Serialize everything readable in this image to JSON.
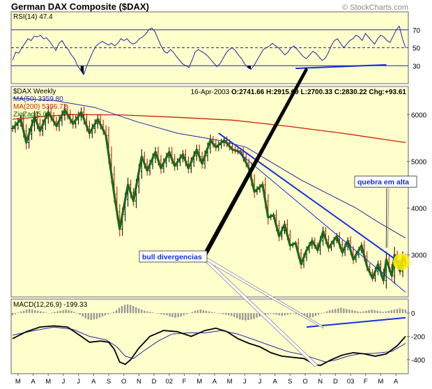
{
  "chart_data": {
    "type": "line",
    "title": "German DAX Composite ($DAX)",
    "watermark": "© StockCharts.com",
    "rsi": {
      "label": "RSI(14)",
      "value": "47.4",
      "levels": [
        70,
        50,
        30
      ],
      "ylim": [
        10,
        90
      ],
      "values": [
        36,
        45,
        44,
        50,
        55,
        60,
        58,
        63,
        62,
        64,
        60,
        61,
        57,
        52,
        47,
        55,
        58,
        52,
        48,
        42,
        38,
        30,
        25,
        20,
        30,
        38,
        46,
        52,
        55,
        57,
        55,
        53,
        55,
        52,
        55,
        60,
        58,
        60,
        56,
        54,
        56,
        60,
        62,
        65,
        70,
        72,
        68,
        60,
        52,
        46,
        44,
        48,
        45,
        40,
        36,
        32,
        30,
        28,
        36,
        45,
        48,
        46,
        44,
        41,
        37,
        33,
        29,
        32,
        38,
        44,
        48,
        50,
        47,
        42,
        38,
        32,
        28,
        26,
        30,
        36,
        42,
        48,
        50,
        52,
        55,
        52,
        50,
        46,
        42,
        45,
        50,
        52,
        48,
        44,
        40,
        38,
        42,
        46,
        44,
        40,
        36,
        38,
        44,
        52,
        58,
        60,
        55,
        50,
        54,
        58,
        60,
        64,
        62,
        58,
        66,
        62,
        58,
        54,
        60,
        64,
        62,
        58,
        56,
        63,
        70,
        74,
        60,
        50
      ]
    },
    "price": {
      "label": "$DAX Weekly",
      "date": "16-Apr-2003",
      "open": "O:2741.66",
      "high": "H:2915.69",
      "low": "L:2700.33",
      "close": "C:2830.22",
      "change": "Chg:+93.61",
      "ma50_label": "MA(50) 3359.80",
      "ma200_label": "MA(200) 5396.72",
      "zigzag_label": "ZigZag(5.0)",
      "y_ticks": [
        6000,
        5000,
        4000,
        3000
      ],
      "ylim": [
        2100,
        6600
      ],
      "zigzag": [
        [
          0,
          5700
        ],
        [
          3,
          5900
        ],
        [
          5,
          5400
        ],
        [
          8,
          5950
        ],
        [
          10,
          5650
        ],
        [
          13,
          6050
        ],
        [
          16,
          5750
        ],
        [
          19,
          6100
        ],
        [
          22,
          5800
        ],
        [
          25,
          6050
        ],
        [
          28,
          5600
        ],
        [
          31,
          5900
        ],
        [
          34,
          5550
        ],
        [
          37,
          4300
        ],
        [
          39,
          3550
        ],
        [
          42,
          4500
        ],
        [
          44,
          4150
        ],
        [
          47,
          5100
        ],
        [
          49,
          4800
        ],
        [
          52,
          5200
        ],
        [
          54,
          4850
        ],
        [
          57,
          5200
        ],
        [
          59,
          4900
        ],
        [
          62,
          5150
        ],
        [
          64,
          4850
        ],
        [
          67,
          5250
        ],
        [
          69,
          4950
        ],
        [
          72,
          5450
        ],
        [
          74,
          5300
        ],
        [
          77,
          5450
        ],
        [
          80,
          5250
        ],
        [
          83,
          5200
        ],
        [
          86,
          4850
        ],
        [
          88,
          4350
        ],
        [
          91,
          4500
        ],
        [
          93,
          3800
        ],
        [
          95,
          3850
        ],
        [
          97,
          3400
        ],
        [
          99,
          3650
        ],
        [
          101,
          3200
        ],
        [
          103,
          3250
        ],
        [
          105,
          2800
        ],
        [
          107,
          3100
        ],
        [
          109,
          3300
        ],
        [
          111,
          3100
        ],
        [
          113,
          3500
        ],
        [
          115,
          3150
        ],
        [
          118,
          3400
        ],
        [
          120,
          3050
        ],
        [
          122,
          3300
        ],
        [
          124,
          2900
        ],
        [
          127,
          3200
        ],
        [
          129,
          2750
        ],
        [
          131,
          2500
        ],
        [
          133,
          2800
        ],
        [
          135,
          2450
        ],
        [
          136,
          2900
        ],
        [
          138,
          2550
        ],
        [
          139,
          3000
        ],
        [
          141,
          2650
        ],
        [
          142,
          2950
        ],
        [
          143,
          2820
        ]
      ],
      "ma50": [
        [
          0,
          6350
        ],
        [
          15,
          6300
        ],
        [
          30,
          6150
        ],
        [
          45,
          5850
        ],
        [
          60,
          5600
        ],
        [
          75,
          5450
        ],
        [
          85,
          5300
        ],
        [
          95,
          4950
        ],
        [
          105,
          4600
        ],
        [
          115,
          4300
        ],
        [
          125,
          4000
        ],
        [
          133,
          3700
        ],
        [
          143,
          3360
        ]
      ],
      "ma200": [
        [
          0,
          5900
        ],
        [
          20,
          6000
        ],
        [
          40,
          5990
        ],
        [
          60,
          5940
        ],
        [
          80,
          5880
        ],
        [
          100,
          5750
        ],
        [
          120,
          5600
        ],
        [
          143,
          5400
        ]
      ],
      "resistance_line": [
        [
          75,
          5600
        ],
        [
          143,
          2750
        ]
      ],
      "channel_line": [
        [
          82,
          5200
        ],
        [
          143,
          2200
        ]
      ],
      "highlight_circle": [
        142,
        2850
      ],
      "annotations": [
        {
          "text": "bull divergencias",
          "x": 69,
          "y": 2950
        },
        {
          "text": "quebra em alta",
          "x": 125,
          "y": 4550
        }
      ]
    },
    "macd": {
      "label": "MACD(12,26,9)",
      "value": "-199.33",
      "ylim": [
        -520,
        120
      ],
      "y_ticks": [
        0,
        -200,
        -400
      ],
      "macd": [
        [
          0,
          -220
        ],
        [
          5,
          -160
        ],
        [
          10,
          -120
        ],
        [
          15,
          -110
        ],
        [
          20,
          -120
        ],
        [
          25,
          -200
        ],
        [
          28,
          -250
        ],
        [
          32,
          -240
        ],
        [
          35,
          -250
        ],
        [
          37,
          -310
        ],
        [
          39,
          -420
        ],
        [
          41,
          -440
        ],
        [
          43,
          -400
        ],
        [
          46,
          -300
        ],
        [
          50,
          -200
        ],
        [
          55,
          -150
        ],
        [
          60,
          -160
        ],
        [
          65,
          -200
        ],
        [
          70,
          -150
        ],
        [
          74,
          -130
        ],
        [
          78,
          -160
        ],
        [
          82,
          -220
        ],
        [
          86,
          -260
        ],
        [
          90,
          -290
        ],
        [
          94,
          -340
        ],
        [
          98,
          -370
        ],
        [
          102,
          -380
        ],
        [
          106,
          -390
        ],
        [
          110,
          -440
        ],
        [
          112,
          -450
        ],
        [
          116,
          -400
        ],
        [
          120,
          -360
        ],
        [
          124,
          -340
        ],
        [
          128,
          -350
        ],
        [
          132,
          -370
        ],
        [
          136,
          -350
        ],
        [
          140,
          -280
        ],
        [
          143,
          -200
        ]
      ],
      "signal": [
        [
          0,
          -190
        ],
        [
          8,
          -150
        ],
        [
          15,
          -120
        ],
        [
          22,
          -140
        ],
        [
          28,
          -200
        ],
        [
          34,
          -230
        ],
        [
          38,
          -290
        ],
        [
          41,
          -370
        ],
        [
          44,
          -390
        ],
        [
          48,
          -320
        ],
        [
          53,
          -240
        ],
        [
          58,
          -180
        ],
        [
          64,
          -170
        ],
        [
          70,
          -170
        ],
        [
          76,
          -150
        ],
        [
          82,
          -180
        ],
        [
          88,
          -230
        ],
        [
          94,
          -280
        ],
        [
          100,
          -330
        ],
        [
          106,
          -360
        ],
        [
          110,
          -390
        ],
        [
          114,
          -420
        ],
        [
          118,
          -400
        ],
        [
          122,
          -370
        ],
        [
          126,
          -350
        ],
        [
          132,
          -345
        ],
        [
          138,
          -330
        ],
        [
          143,
          -260
        ]
      ],
      "hist": [
        -20,
        -10,
        5,
        15,
        20,
        30,
        35,
        30,
        25,
        20,
        15,
        10,
        5,
        0,
        5,
        10,
        15,
        20,
        25,
        30,
        25,
        20,
        10,
        -5,
        -15,
        -30,
        -45,
        -55,
        -60,
        -55,
        -50,
        -40,
        -30,
        -20,
        -10,
        0,
        10,
        25,
        45,
        60,
        70,
        75,
        70,
        60,
        50,
        40,
        30,
        20,
        15,
        10,
        5,
        0,
        -5,
        -10,
        -15,
        -20,
        -30,
        -35,
        -40,
        -35,
        -30,
        -20,
        -10,
        0,
        10,
        20,
        25,
        30,
        25,
        20,
        15,
        10,
        5,
        0,
        -5,
        -10,
        -15,
        -20,
        -25,
        -35,
        -45,
        -55,
        -60,
        -65,
        -60,
        -55,
        -50,
        -40,
        -30,
        -20,
        -15,
        -10,
        -5,
        -10,
        -15,
        -20,
        -25,
        -20,
        -15,
        -10,
        -5,
        -10,
        -20,
        -30,
        -40,
        -45,
        -40,
        -35,
        -25,
        -15,
        -5,
        5,
        15,
        25,
        30,
        35,
        40,
        45,
        40,
        35,
        30,
        25,
        20,
        15,
        10,
        15,
        20,
        25,
        30,
        25,
        20,
        15,
        10,
        15,
        20,
        25,
        30,
        35,
        40,
        35,
        30
      ]
    },
    "divergence_lines": {
      "rsi": [
        [
          103,
          27
        ],
        [
          136,
          31
        ]
      ],
      "macd": [
        [
          107,
          -120
        ],
        [
          143,
          -40
        ]
      ]
    },
    "x_axis": {
      "labels": [
        "M",
        "A",
        "M",
        "J",
        "J",
        "A",
        "S",
        "O",
        "N",
        "D",
        "02",
        "F",
        "M",
        "A",
        "M",
        "J",
        "J",
        "A",
        "S",
        "O",
        "N",
        "D",
        "03",
        "F",
        "M",
        "A"
      ],
      "positions": [
        2,
        7.5,
        13,
        18.5,
        24,
        29.5,
        35,
        40.5,
        46,
        51.5,
        57,
        62.5,
        68,
        73.5,
        79,
        84.5,
        90,
        95.5,
        101,
        106.5,
        112,
        117.5,
        123,
        128.5,
        134,
        139.5
      ]
    }
  }
}
